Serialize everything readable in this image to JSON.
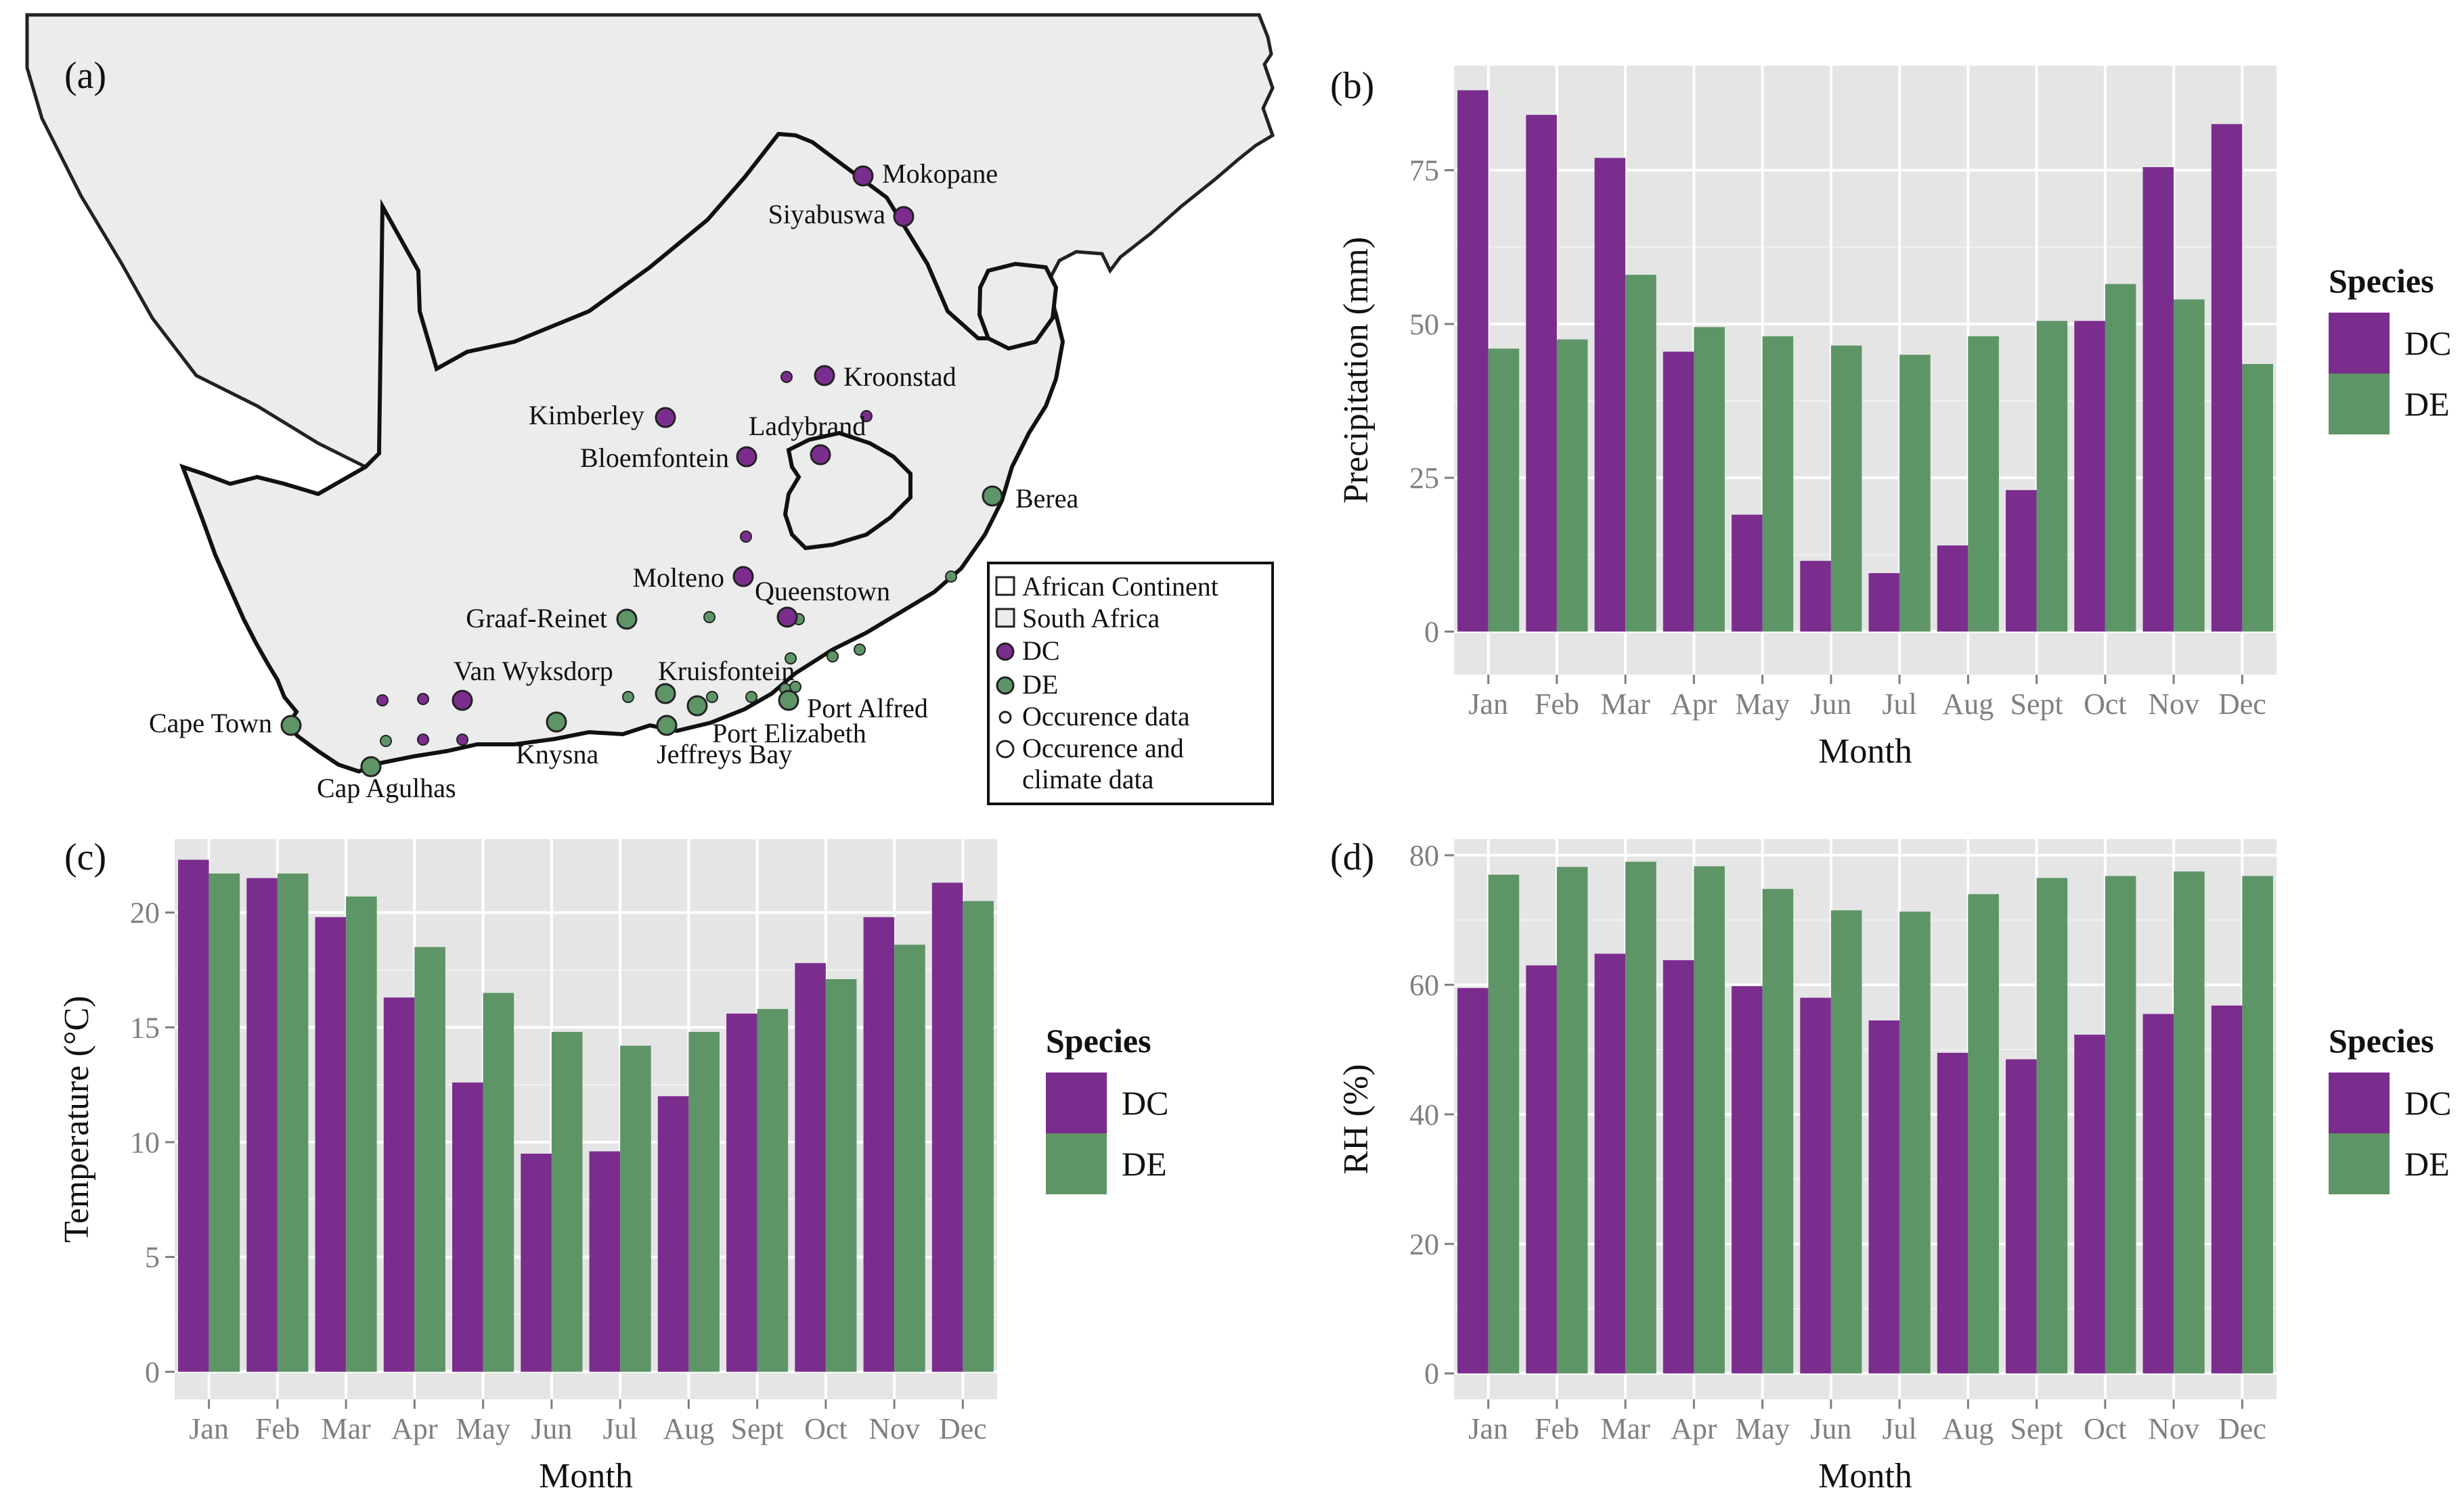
{
  "colors": {
    "DC": "#7b2d8e",
    "DE": "#5e9567",
    "panel": "#e5e5e5",
    "grid": "#ffffff",
    "land": "#ececec"
  },
  "map": {
    "panel_label": "(a)",
    "cities": [
      {
        "name": "Mokopane",
        "species": "DC"
      },
      {
        "name": "Siyabuswa",
        "species": "DC"
      },
      {
        "name": "Kroonstad",
        "species": "DC"
      },
      {
        "name": "Kimberley",
        "species": "DC"
      },
      {
        "name": "Ladybrand",
        "species": "DC"
      },
      {
        "name": "Bloemfontein",
        "species": "DC"
      },
      {
        "name": "Berea",
        "species": "DE"
      },
      {
        "name": "Molteno",
        "species": "DC"
      },
      {
        "name": "Queenstown",
        "species": "DC"
      },
      {
        "name": "Graaf-Reinet",
        "species": "DE"
      },
      {
        "name": "Van Wyksdorp",
        "species": "DC"
      },
      {
        "name": "Kruisfontein",
        "species": "DE"
      },
      {
        "name": "Port Alfred",
        "species": "DE"
      },
      {
        "name": "Cape Town",
        "species": "DE"
      },
      {
        "name": "Port Elizabeth",
        "species": "DE"
      },
      {
        "name": "Knysna",
        "species": "DE"
      },
      {
        "name": "Jeffreys Bay",
        "species": "DE"
      },
      {
        "name": "Cap Agulhas",
        "species": "DE"
      }
    ],
    "legend": [
      "African Continent",
      "South Africa",
      "DC",
      "DE",
      "Occurence data",
      "Occurence and",
      "climate data"
    ]
  },
  "chart_data": [
    {
      "id": "b",
      "panel_label": "(b)",
      "type": "bar",
      "categories": [
        "Jan",
        "Feb",
        "Mar",
        "Apr",
        "May",
        "Jun",
        "Jul",
        "Aug",
        "Sept",
        "Oct",
        "Nov",
        "Dec"
      ],
      "series": [
        {
          "name": "DC",
          "values": [
            88,
            84,
            77,
            45.5,
            19,
            11.5,
            9.5,
            14,
            23,
            50.5,
            75.5,
            82.5
          ]
        },
        {
          "name": "DE",
          "values": [
            46,
            47.5,
            58,
            49.5,
            48,
            46.5,
            45,
            48,
            50.5,
            56.5,
            54,
            43.5
          ]
        }
      ],
      "xlabel": "Month",
      "ylabel": "Precipitation (mm)",
      "ylim": [
        -7,
        92
      ],
      "yticks": [
        0,
        25,
        50,
        75
      ],
      "legend_title": "Species",
      "legend": [
        "DC",
        "DE"
      ]
    },
    {
      "id": "c",
      "panel_label": "(c)",
      "type": "bar",
      "categories": [
        "Jan",
        "Feb",
        "Mar",
        "Apr",
        "May",
        "Jun",
        "Jul",
        "Aug",
        "Sept",
        "Oct",
        "Nov",
        "Dec"
      ],
      "series": [
        {
          "name": "DC",
          "values": [
            22.3,
            21.5,
            19.8,
            16.3,
            12.6,
            9.5,
            9.6,
            12.0,
            15.6,
            17.8,
            19.8,
            21.3
          ]
        },
        {
          "name": "DE",
          "values": [
            21.7,
            21.7,
            20.7,
            18.5,
            16.5,
            14.8,
            14.2,
            14.8,
            15.8,
            17.1,
            18.6,
            20.5
          ]
        }
      ],
      "xlabel": "Month",
      "ylabel": "Temperature (°C)",
      "ylim": [
        -1.2,
        23.2
      ],
      "yticks": [
        0,
        5,
        10,
        15,
        20
      ],
      "legend_title": "Species",
      "legend": [
        "DC",
        "DE"
      ]
    },
    {
      "id": "d",
      "panel_label": "(d)",
      "type": "bar",
      "categories": [
        "Jan",
        "Feb",
        "Mar",
        "Apr",
        "May",
        "Jun",
        "Jul",
        "Aug",
        "Sept",
        "Oct",
        "Nov",
        "Dec"
      ],
      "series": [
        {
          "name": "DC",
          "values": [
            59.5,
            63,
            64.8,
            63.8,
            59.8,
            58,
            54.5,
            49.5,
            48.5,
            52.3,
            55.5,
            56.8
          ]
        },
        {
          "name": "DE",
          "values": [
            77,
            78.2,
            79,
            78.3,
            74.8,
            71.5,
            71.3,
            74,
            76.5,
            76.8,
            77.5,
            76.8
          ]
        }
      ],
      "xlabel": "Month",
      "ylabel": "RH (%)",
      "ylim": [
        -4,
        82.5
      ],
      "yticks": [
        0,
        20,
        40,
        60,
        80
      ],
      "legend_title": "Species",
      "legend": [
        "DC",
        "DE"
      ]
    }
  ]
}
